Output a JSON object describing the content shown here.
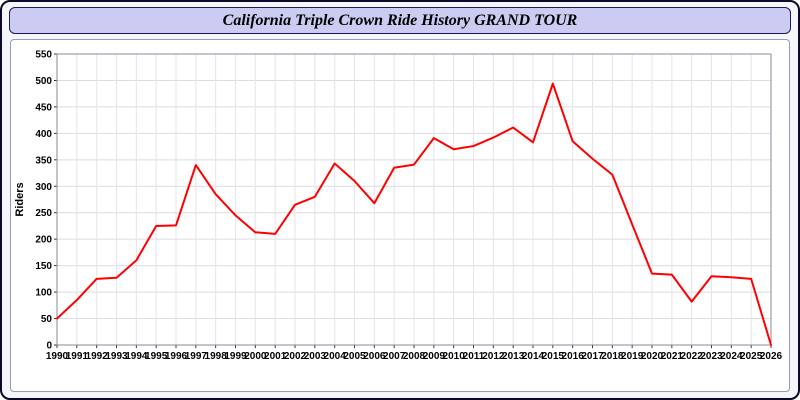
{
  "header": {
    "title": "California Triple Crown Ride History GRAND TOUR"
  },
  "colors": {
    "window_border": "#0a0a2a",
    "page_background": "#f5f5fb",
    "titlebar_background": "#ccccf2",
    "titlebar_border": "#1a1a5e",
    "plot_background": "#ffffff",
    "gridline": "#dcdce2",
    "line": "#ff0000"
  },
  "chart_data": {
    "type": "line",
    "title": "California Triple Crown Ride History GRAND TOUR",
    "xlabel": "",
    "ylabel": "Riders",
    "xlim": [
      1990,
      2026
    ],
    "ylim": [
      0,
      550
    ],
    "ytick_step": 50,
    "grid": true,
    "legend": "none",
    "x": [
      1990,
      1991,
      1992,
      1993,
      1994,
      1995,
      1996,
      1997,
      1998,
      1999,
      2000,
      2001,
      2002,
      2003,
      2004,
      2005,
      2006,
      2007,
      2008,
      2009,
      2010,
      2011,
      2012,
      2013,
      2014,
      2015,
      2016,
      2017,
      2018,
      2019,
      2020,
      2021,
      2022,
      2023,
      2024,
      2025,
      2026
    ],
    "series": [
      {
        "name": "Riders",
        "color": "#ff0000",
        "values": [
          50,
          85,
          125,
          127,
          160,
          225,
          226,
          340,
          285,
          245,
          213,
          210,
          265,
          280,
          343,
          310,
          268,
          335,
          341,
          391,
          370,
          376,
          392,
          411,
          383,
          494,
          385,
          352,
          322,
          228,
          135,
          133,
          82,
          130,
          128,
          125,
          0
        ]
      }
    ]
  }
}
